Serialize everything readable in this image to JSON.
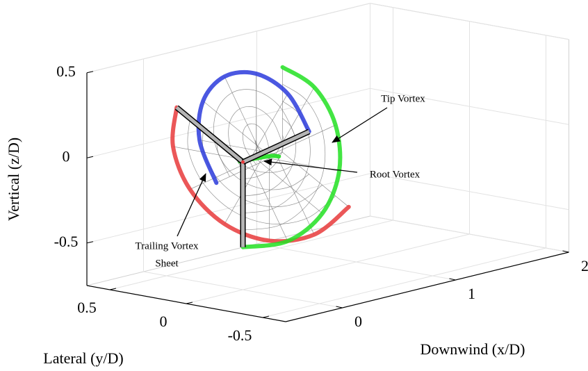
{
  "chart_data": {
    "type": "3d-line",
    "xlabel": "Downwind (x/D)",
    "ylabel": "Lateral (y/D)",
    "zlabel": "Vertical (z/D)",
    "xlim": [
      -0.5,
      2
    ],
    "ylim": [
      -0.65,
      0.65
    ],
    "zlim": [
      -0.75,
      0.5
    ],
    "xticks": [
      0,
      1,
      2
    ],
    "yticks": [
      -0.5,
      0,
      0.5
    ],
    "zticks": [
      -0.5,
      0,
      0.5
    ],
    "grid": true,
    "series": [
      {
        "color": "#e8393b",
        "x": [
          0,
          0.058,
          0.117,
          0.175,
          0.233,
          0.292,
          0.35
        ],
        "y": [
          0.433,
          0.5,
          0.433,
          0.25,
          0,
          -0.25,
          -0.433
        ],
        "z": [
          0.25,
          0,
          -0.25,
          -0.433,
          -0.5,
          -0.433,
          -0.25
        ]
      },
      {
        "color": "#22e022",
        "x": [
          0,
          0.058,
          0.117,
          0.175,
          0.233,
          0.292,
          0.35
        ],
        "y": [
          0,
          -0.25,
          -0.433,
          -0.5,
          -0.433,
          -0.25,
          0
        ],
        "z": [
          -0.5,
          -0.433,
          -0.25,
          0,
          0.25,
          0.433,
          0.5
        ]
      },
      {
        "color": "#2b3bdc",
        "x": [
          0,
          0.058,
          0.117,
          0.175,
          0.233,
          0.292,
          0.35
        ],
        "y": [
          -0.433,
          -0.25,
          0,
          0.25,
          0.433,
          0.5,
          0.433
        ],
        "z": [
          0.25,
          0.433,
          0.5,
          0.433,
          0.25,
          0,
          -0.25
        ]
      }
    ],
    "root_vortex": {
      "color": "#22e022",
      "x": [
        0,
        0.1,
        0.2,
        0.25
      ],
      "y": [
        0.02,
        -0.02,
        -0.04,
        -0.05
      ],
      "z": [
        0,
        0.01,
        0.01,
        0
      ]
    },
    "annotations": [
      {
        "text": "Tip Vortex"
      },
      {
        "text": "Root Vortex"
      },
      {
        "lines": [
          "Trailing Vortex",
          "Sheet"
        ]
      }
    ]
  }
}
